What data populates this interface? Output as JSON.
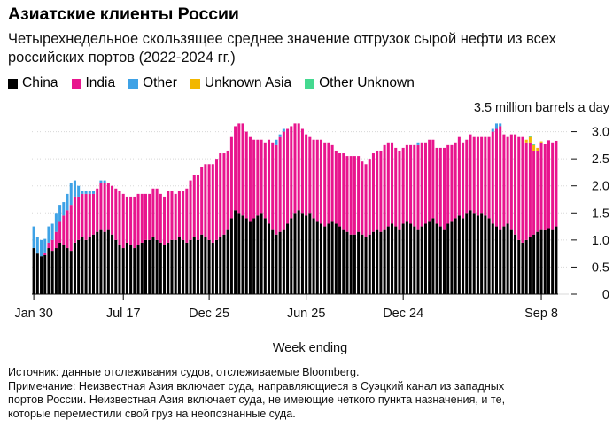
{
  "title": "Азиатские клиенты России",
  "subtitle": "Четырехнедельное скользящее среднее значение отгрузок сырой нефти из всех российских портов (2022-2024 гг.)",
  "legend": [
    {
      "label": "China",
      "color": "#000000"
    },
    {
      "label": "India",
      "color": "#e8158e"
    },
    {
      "label": "Other",
      "color": "#3ea2e6"
    },
    {
      "label": "Unknown Asia",
      "color": "#f2b700"
    },
    {
      "label": "Other Unknown",
      "color": "#44d990"
    }
  ],
  "footnotes": {
    "source": "Источник: данные отслеживания судов, отслеживаемые Bloomberg.",
    "note_line1": "Примечание: Неизвестная Азия включает суда, направляющиеся в Суэцкий канал из западных",
    "note_line2": "портов России. Неизвестная Азия включает суда, не имеющие четкого пункта назначения, и те,",
    "note_line3": "которые переместили свой груз на неопознанные суда."
  },
  "chart_data": {
    "type": "bar",
    "stacked": true,
    "ylabel": "million barrels a day",
    "y_top_tick_label": "3.5 million barrels a day",
    "xlabel": "Week ending",
    "ylim": [
      0,
      3.5
    ],
    "y_ticks": [
      0,
      0.5,
      1.0,
      1.5,
      2.0,
      2.5,
      3.0
    ],
    "y_tick_labels": [
      "0",
      "0.5",
      "1.0",
      "1.5",
      "2.0",
      "2.5",
      "3.0"
    ],
    "x_tick_labels": [
      {
        "label": "Jan 30",
        "index": 0
      },
      {
        "label": "Jul 17",
        "index": 24
      },
      {
        "label": "Dec 25",
        "index": 47
      },
      {
        "label": "Jun 25",
        "index": 73
      },
      {
        "label": "Dec 24",
        "index": 99
      },
      {
        "label": "Sep 8",
        "index": 136
      }
    ],
    "series": [
      {
        "name": "China",
        "color": "#000000",
        "values": [
          0.85,
          0.75,
          0.7,
          0.72,
          0.85,
          0.8,
          0.85,
          0.95,
          0.9,
          0.85,
          0.8,
          0.95,
          1.0,
          1.05,
          1.0,
          1.05,
          1.1,
          1.15,
          1.2,
          1.15,
          1.2,
          1.1,
          1.0,
          0.9,
          0.85,
          0.95,
          0.9,
          0.85,
          0.9,
          0.95,
          1.0,
          1.0,
          1.05,
          1.0,
          0.95,
          0.9,
          0.95,
          1.0,
          1.0,
          1.05,
          1.0,
          0.95,
          1.0,
          1.05,
          1.0,
          1.1,
          1.05,
          1.0,
          0.95,
          1.0,
          1.05,
          1.1,
          1.2,
          1.4,
          1.55,
          1.5,
          1.45,
          1.4,
          1.35,
          1.4,
          1.45,
          1.5,
          1.4,
          1.3,
          1.2,
          1.1,
          1.15,
          1.2,
          1.3,
          1.4,
          1.5,
          1.55,
          1.5,
          1.45,
          1.5,
          1.4,
          1.35,
          1.3,
          1.25,
          1.3,
          1.35,
          1.3,
          1.25,
          1.2,
          1.15,
          1.1,
          1.1,
          1.15,
          1.1,
          1.05,
          1.1,
          1.15,
          1.2,
          1.15,
          1.2,
          1.25,
          1.3,
          1.25,
          1.2,
          1.3,
          1.35,
          1.3,
          1.25,
          1.2,
          1.25,
          1.3,
          1.35,
          1.4,
          1.3,
          1.25,
          1.2,
          1.3,
          1.35,
          1.4,
          1.45,
          1.4,
          1.5,
          1.55,
          1.5,
          1.45,
          1.5,
          1.45,
          1.4,
          1.3,
          1.25,
          1.2,
          1.25,
          1.3,
          1.2,
          1.1,
          1.0,
          0.95,
          1.0,
          1.05,
          1.1,
          1.15,
          1.2,
          1.18,
          1.22,
          1.2,
          1.25
        ]
      },
      {
        "name": "India",
        "color": "#e8158e",
        "values": [
          0.0,
          0.0,
          0.0,
          0.05,
          0.1,
          0.2,
          0.3,
          0.4,
          0.55,
          0.7,
          0.85,
          0.85,
          0.8,
          0.8,
          0.85,
          0.8,
          0.75,
          0.8,
          0.85,
          0.9,
          0.85,
          0.9,
          0.95,
          1.0,
          1.0,
          0.85,
          0.9,
          0.95,
          0.95,
          0.9,
          0.85,
          0.85,
          0.9,
          0.95,
          0.9,
          0.9,
          0.95,
          0.9,
          0.85,
          0.85,
          0.9,
          1.0,
          1.1,
          1.15,
          1.2,
          1.25,
          1.35,
          1.4,
          1.45,
          1.5,
          1.55,
          1.5,
          1.45,
          1.5,
          1.55,
          1.65,
          1.7,
          1.6,
          1.55,
          1.45,
          1.4,
          1.35,
          1.4,
          1.55,
          1.6,
          1.65,
          1.75,
          1.8,
          1.75,
          1.7,
          1.65,
          1.6,
          1.55,
          1.5,
          1.4,
          1.45,
          1.5,
          1.55,
          1.55,
          1.5,
          1.4,
          1.35,
          1.35,
          1.4,
          1.4,
          1.45,
          1.45,
          1.4,
          1.35,
          1.35,
          1.4,
          1.45,
          1.45,
          1.5,
          1.55,
          1.55,
          1.5,
          1.45,
          1.45,
          1.4,
          1.4,
          1.45,
          1.5,
          1.55,
          1.55,
          1.5,
          1.5,
          1.45,
          1.4,
          1.45,
          1.5,
          1.45,
          1.4,
          1.4,
          1.45,
          1.4,
          1.35,
          1.4,
          1.4,
          1.45,
          1.4,
          1.45,
          1.5,
          1.7,
          1.8,
          1.9,
          1.7,
          1.6,
          1.75,
          1.85,
          1.9,
          1.95,
          1.8,
          1.75,
          1.55,
          1.5,
          1.6,
          1.6,
          1.62,
          1.6,
          1.58
        ]
      },
      {
        "name": "Other",
        "color": "#3ea2e6",
        "values": [
          0.4,
          0.3,
          0.3,
          0.25,
          0.3,
          0.3,
          0.35,
          0.3,
          0.25,
          0.3,
          0.4,
          0.3,
          0.2,
          0.05,
          0.05,
          0.05,
          0.05,
          0.0,
          0.05,
          0.05,
          0.0,
          0.0,
          0.0,
          0.0,
          0.0,
          0.0,
          0.0,
          0.0,
          0.0,
          0.0,
          0.0,
          0.0,
          0.0,
          0.0,
          0.0,
          0.0,
          0.0,
          0.0,
          0.0,
          0.0,
          0.0,
          0.0,
          0.0,
          0.0,
          0.0,
          0.0,
          0.0,
          0.0,
          0.0,
          0.0,
          0.0,
          0.0,
          0.0,
          0.0,
          0.0,
          0.0,
          0.0,
          0.0,
          0.0,
          0.0,
          0.0,
          0.0,
          0.0,
          0.0,
          0.0,
          0.1,
          0.05,
          0.05,
          0.0,
          0.0,
          0.0,
          0.0,
          0.0,
          0.0,
          0.0,
          0.0,
          0.0,
          0.0,
          0.0,
          0.0,
          0.0,
          0.0,
          0.0,
          0.0,
          0.0,
          0.0,
          0.0,
          0.0,
          0.0,
          0.0,
          0.0,
          0.0,
          0.0,
          0.0,
          0.0,
          0.0,
          0.0,
          0.0,
          0.0,
          0.0,
          0.0,
          0.0,
          0.0,
          0.05,
          0.0,
          0.0,
          0.0,
          0.0,
          0.0,
          0.0,
          0.0,
          0.0,
          0.0,
          0.0,
          0.0,
          0.0,
          0.0,
          0.0,
          0.0,
          0.0,
          0.0,
          0.0,
          0.0,
          0.05,
          0.1,
          0.05,
          0.0,
          0.0,
          0.0,
          0.0,
          0.0,
          0.0,
          0.0,
          0.0,
          0.0,
          0.0,
          0.0,
          0.0,
          0.0,
          0.0,
          0.0,
          0.0,
          0.0
        ]
      },
      {
        "name": "Unknown Asia",
        "color": "#f2b700",
        "values": [
          0,
          0,
          0,
          0,
          0,
          0,
          0,
          0,
          0,
          0,
          0,
          0,
          0,
          0,
          0,
          0,
          0,
          0,
          0,
          0,
          0,
          0,
          0,
          0,
          0,
          0,
          0,
          0,
          0,
          0,
          0,
          0,
          0,
          0,
          0,
          0,
          0,
          0,
          0,
          0,
          0,
          0,
          0,
          0,
          0,
          0,
          0,
          0,
          0,
          0,
          0,
          0,
          0,
          0,
          0,
          0,
          0,
          0,
          0,
          0,
          0,
          0,
          0,
          0,
          0,
          0,
          0,
          0,
          0,
          0,
          0,
          0,
          0,
          0,
          0,
          0,
          0,
          0,
          0,
          0,
          0,
          0,
          0,
          0,
          0,
          0,
          0,
          0,
          0,
          0,
          0,
          0,
          0,
          0,
          0,
          0,
          0,
          0,
          0,
          0,
          0,
          0,
          0,
          0,
          0,
          0,
          0,
          0,
          0,
          0,
          0,
          0,
          0,
          0,
          0,
          0,
          0,
          0,
          0,
          0,
          0,
          0,
          0,
          0,
          0,
          0,
          0,
          0,
          0,
          0,
          0,
          0,
          0.05,
          0.1,
          0.1,
          0.05,
          0.02
        ]
      },
      {
        "name": "Other Unknown",
        "color": "#44d990",
        "values": [
          0,
          0,
          0,
          0,
          0,
          0,
          0,
          0,
          0,
          0,
          0,
          0,
          0,
          0,
          0,
          0,
          0,
          0,
          0,
          0,
          0,
          0,
          0,
          0,
          0,
          0,
          0,
          0,
          0,
          0,
          0,
          0,
          0,
          0,
          0,
          0,
          0,
          0,
          0,
          0,
          0,
          0,
          0,
          0,
          0,
          0,
          0,
          0,
          0,
          0,
          0,
          0,
          0,
          0,
          0,
          0,
          0,
          0,
          0,
          0,
          0,
          0,
          0,
          0,
          0,
          0,
          0,
          0,
          0,
          0,
          0,
          0,
          0,
          0,
          0,
          0,
          0,
          0,
          0,
          0,
          0,
          0,
          0,
          0,
          0,
          0,
          0,
          0,
          0,
          0,
          0,
          0,
          0,
          0,
          0,
          0,
          0,
          0,
          0,
          0,
          0,
          0,
          0,
          0,
          0,
          0,
          0,
          0,
          0,
          0,
          0,
          0,
          0,
          0,
          0,
          0,
          0,
          0,
          0,
          0,
          0,
          0,
          0,
          0,
          0,
          0,
          0,
          0,
          0,
          0,
          0,
          0,
          0.0,
          0.02,
          0.02,
          0.0,
          0.0
        ]
      }
    ]
  }
}
